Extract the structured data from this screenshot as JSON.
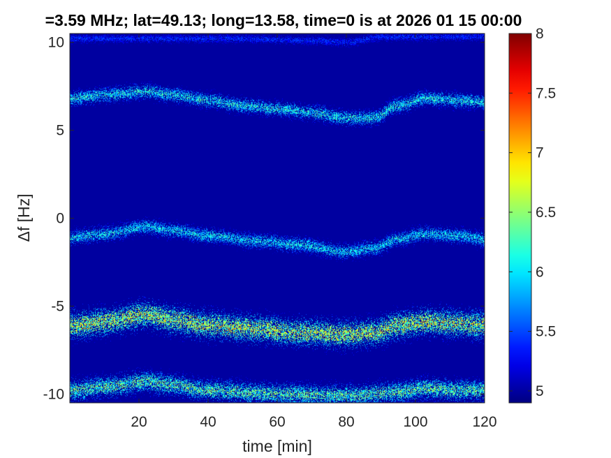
{
  "chart_data": {
    "type": "heatmap",
    "title": "=3.59 MHz;  lat=49.13; long=13.58, time=0 is at 2026 01 15 00:00",
    "xlabel": "time [min]",
    "ylabel": "Δf [Hz]",
    "xlim": [
      0,
      120
    ],
    "ylim": [
      -10.5,
      10.5
    ],
    "xticks": [
      20,
      40,
      60,
      80,
      100,
      120
    ],
    "xtick_labels": [
      "20",
      "40",
      "60",
      "80",
      "100",
      "120"
    ],
    "yticks": [
      -10,
      -5,
      0,
      5,
      10
    ],
    "ytick_labels": [
      "-10",
      "-5",
      "0",
      "5",
      "10"
    ],
    "colorbar": {
      "colormap": "jet",
      "clim": [
        4.9,
        8
      ],
      "ticks": [
        5,
        5.5,
        6,
        6.5,
        7,
        7.5,
        8
      ],
      "tick_labels": [
        "5",
        "5.5",
        "6",
        "6.5",
        "7",
        "7.5",
        "8"
      ]
    },
    "background_value": 5,
    "traces": [
      {
        "center_points": [
          [
            0,
            6.8
          ],
          [
            10,
            7.0
          ],
          [
            22,
            7.2
          ],
          [
            30,
            7.0
          ],
          [
            40,
            6.7
          ],
          [
            50,
            6.4
          ],
          [
            60,
            6.2
          ],
          [
            70,
            6.0
          ],
          [
            80,
            5.7
          ],
          [
            88,
            5.7
          ],
          [
            95,
            6.4
          ],
          [
            103,
            6.8
          ],
          [
            112,
            6.7
          ],
          [
            120,
            6.6
          ]
        ],
        "width_hz": 0.5,
        "peak_value": 6.5
      },
      {
        "center_points": [
          [
            0,
            -1.1
          ],
          [
            10,
            -0.9
          ],
          [
            22,
            -0.5
          ],
          [
            30,
            -0.7
          ],
          [
            40,
            -1.0
          ],
          [
            55,
            -1.3
          ],
          [
            65,
            -1.5
          ],
          [
            80,
            -1.9
          ],
          [
            88,
            -1.7
          ],
          [
            95,
            -1.2
          ],
          [
            103,
            -0.9
          ],
          [
            112,
            -1.0
          ],
          [
            120,
            -1.2
          ]
        ],
        "width_hz": 0.5,
        "peak_value": 6.4
      },
      {
        "center_points": [
          [
            0,
            -6.1
          ],
          [
            10,
            -5.9
          ],
          [
            22,
            -5.5
          ],
          [
            30,
            -5.8
          ],
          [
            40,
            -6.1
          ],
          [
            55,
            -6.3
          ],
          [
            65,
            -6.5
          ],
          [
            80,
            -6.6
          ],
          [
            88,
            -6.5
          ],
          [
            95,
            -6.1
          ],
          [
            103,
            -5.9
          ],
          [
            112,
            -6.0
          ],
          [
            120,
            -6.1
          ]
        ],
        "width_hz": 0.9,
        "peak_value": 7.2
      },
      {
        "center_points": [
          [
            0,
            -9.8
          ],
          [
            10,
            -9.6
          ],
          [
            22,
            -9.3
          ],
          [
            30,
            -9.5
          ],
          [
            40,
            -9.8
          ],
          [
            60,
            -10.0
          ],
          [
            80,
            -10.1
          ],
          [
            95,
            -9.9
          ],
          [
            103,
            -9.7
          ],
          [
            112,
            -9.8
          ],
          [
            120,
            -9.8
          ]
        ],
        "width_hz": 0.7,
        "peak_value": 6.8
      },
      {
        "center_points": [
          [
            50,
            10.2
          ],
          [
            70,
            10.1
          ],
          [
            80,
            10.0
          ],
          [
            90,
            10.3
          ]
        ],
        "width_hz": 0.3,
        "peak_value": 5.6
      }
    ]
  }
}
